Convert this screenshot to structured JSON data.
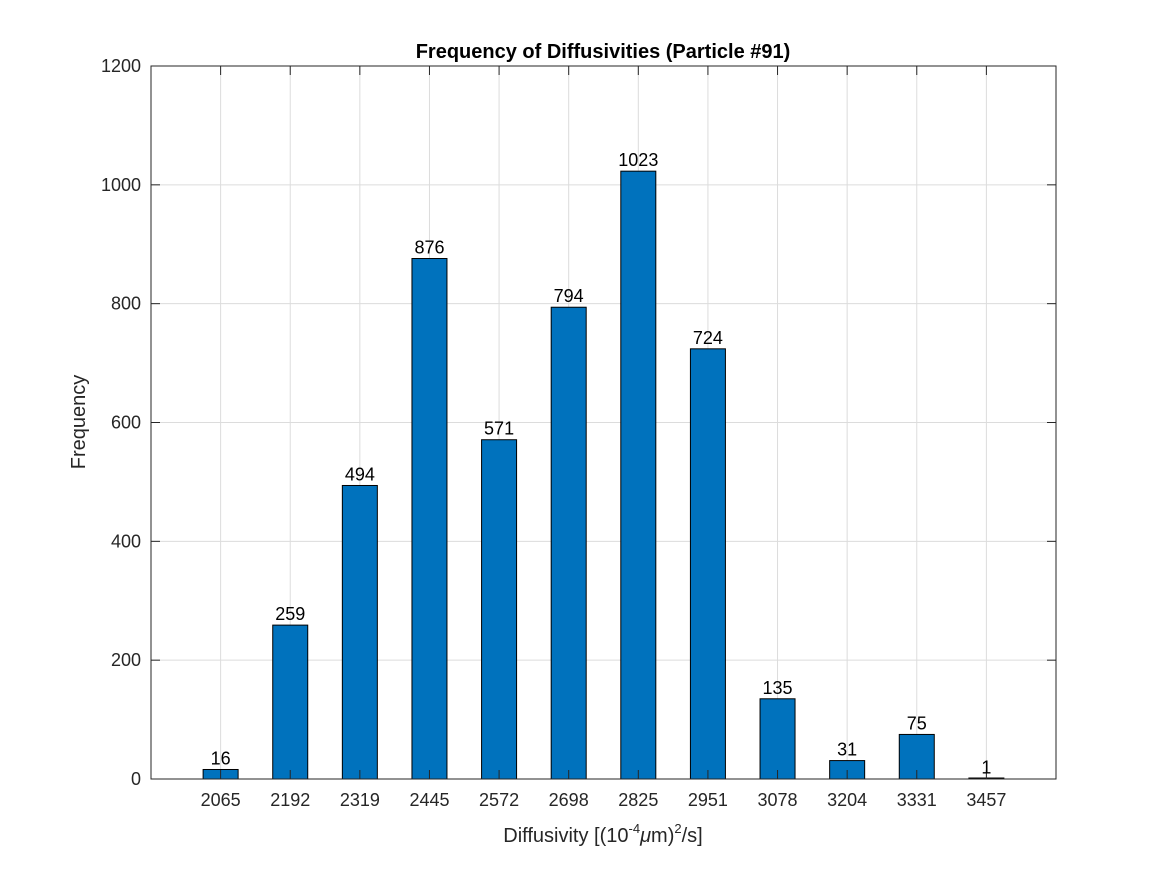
{
  "chart_data": {
    "type": "bar",
    "title": "Frequency of Diffusivities (Particle #91)",
    "xlabel": {
      "prefix": "Diffusivity [(10",
      "exp1": "-4",
      "mu": "μ",
      "mid": "m)",
      "exp2": "2",
      "suffix": "/s]"
    },
    "ylabel": "Frequency",
    "categories": [
      "2065",
      "2192",
      "2319",
      "2445",
      "2572",
      "2698",
      "2825",
      "2951",
      "3078",
      "3204",
      "3331",
      "3457"
    ],
    "values": [
      16,
      259,
      494,
      876,
      571,
      794,
      1023,
      724,
      135,
      31,
      75,
      1
    ],
    "ylim": [
      0,
      1200
    ],
    "yticks": [
      0,
      200,
      400,
      600,
      800,
      1000,
      1200
    ],
    "grid": true,
    "bar_color": "#0072BD",
    "bar_edge_color": "#000000"
  }
}
